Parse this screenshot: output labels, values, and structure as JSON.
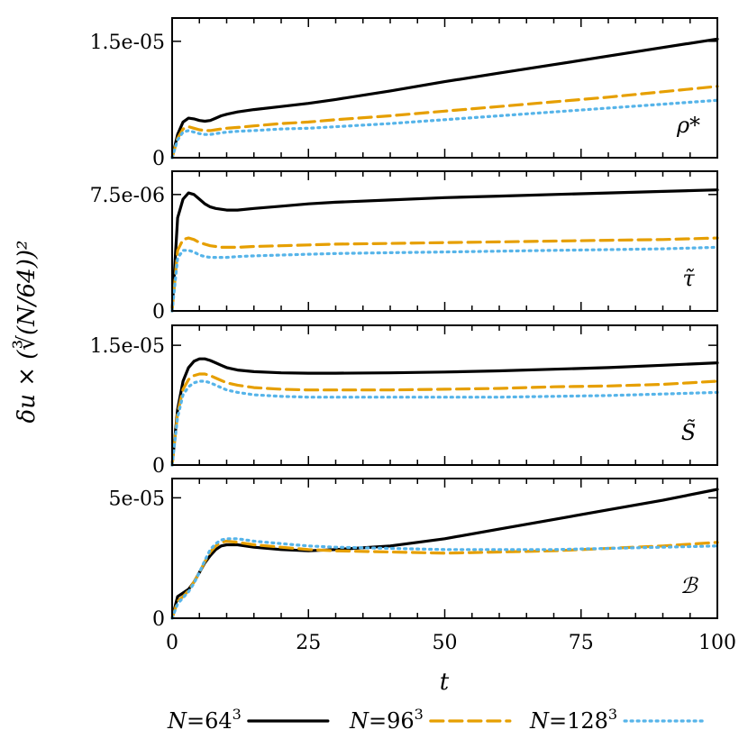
{
  "chart_data": {
    "type": "line",
    "xlabel": "t",
    "ylabel": "δu × (∛(N/64))²",
    "xlim": [
      0,
      100
    ],
    "xticks": [
      "0",
      "25",
      "50",
      "75",
      "100"
    ],
    "x": [
      0,
      1,
      2,
      3,
      4,
      5,
      6,
      7,
      8,
      9,
      10,
      12,
      15,
      20,
      25,
      30,
      40,
      50,
      60,
      70,
      80,
      90,
      100
    ],
    "legend": {
      "placement": "bottom",
      "entries": [
        {
          "prefix": "N",
          "eq": "=",
          "base": "64",
          "exp": "3",
          "color": "#000000",
          "dash": "solid"
        },
        {
          "prefix": "N",
          "eq": "=",
          "base": "96",
          "exp": "3",
          "color": "#e69f00",
          "dash": "dashed"
        },
        {
          "prefix": "N",
          "eq": "=",
          "base": "128",
          "exp": "3",
          "color": "#56b4e9",
          "dash": "dotted"
        }
      ]
    },
    "panels": [
      {
        "label": "ρ*",
        "ylim": [
          0,
          1.8e-05
        ],
        "yticks": [
          {
            "value": 0,
            "label": "0"
          },
          {
            "value": 1.5e-05,
            "label": "1.5e-05"
          }
        ],
        "series": [
          {
            "values": [
              0,
              3e-06,
              4.6e-06,
              5.1e-06,
              5e-06,
              4.8e-06,
              4.7e-06,
              4.8e-06,
              5.1e-06,
              5.4e-06,
              5.6e-06,
              5.9e-06,
              6.2e-06,
              6.6e-06,
              7e-06,
              7.5e-06,
              8.6e-06,
              9.8e-06,
              1.09e-05,
              1.2e-05,
              1.31e-05,
              1.42e-05,
              1.53e-05
            ]
          },
          {
            "values": [
              0,
              2.5e-06,
              3.7e-06,
              4e-06,
              3.8e-06,
              3.6e-06,
              3.5e-06,
              3.5e-06,
              3.6e-06,
              3.7e-06,
              3.8e-06,
              3.9e-06,
              4.1e-06,
              4.4e-06,
              4.6e-06,
              4.9e-06,
              5.4e-06,
              6e-06,
              6.6e-06,
              7.2e-06,
              7.8e-06,
              8.5e-06,
              9.2e-06
            ]
          },
          {
            "values": [
              0,
              2.3e-06,
              3.3e-06,
              3.5e-06,
              3.3e-06,
              3.1e-06,
              3e-06,
              3e-06,
              3.1e-06,
              3.2e-06,
              3.3e-06,
              3.4e-06,
              3.5e-06,
              3.7e-06,
              3.8e-06,
              4e-06,
              4.4e-06,
              4.9e-06,
              5.4e-06,
              5.9e-06,
              6.4e-06,
              6.9e-06,
              7.4e-06
            ]
          }
        ]
      },
      {
        "label": "τ̃",
        "ylim": [
          0,
          9e-06
        ],
        "yticks": [
          {
            "value": 0,
            "label": "0"
          },
          {
            "value": 7.5e-06,
            "label": "7.5e-06"
          }
        ],
        "series": [
          {
            "values": [
              0,
              6e-06,
              7.2e-06,
              7.6e-06,
              7.5e-06,
              7.2e-06,
              6.9e-06,
              6.7e-06,
              6.6e-06,
              6.55e-06,
              6.5e-06,
              6.5e-06,
              6.6e-06,
              6.75e-06,
              6.9e-06,
              7e-06,
              7.15e-06,
              7.3e-06,
              7.4e-06,
              7.5e-06,
              7.6e-06,
              7.7e-06,
              7.8e-06
            ]
          },
          {
            "values": [
              0,
              3.9e-06,
              4.6e-06,
              4.7e-06,
              4.6e-06,
              4.4e-06,
              4.3e-06,
              4.2e-06,
              4.15e-06,
              4.1e-06,
              4.1e-06,
              4.1e-06,
              4.15e-06,
              4.2e-06,
              4.25e-06,
              4.3e-06,
              4.35e-06,
              4.4e-06,
              4.45e-06,
              4.5e-06,
              4.55e-06,
              4.6e-06,
              4.7e-06
            ]
          },
          {
            "values": [
              0,
              3.4e-06,
              3.9e-06,
              3.9e-06,
              3.8e-06,
              3.6e-06,
              3.5e-06,
              3.45e-06,
              3.45e-06,
              3.45e-06,
              3.45e-06,
              3.5e-06,
              3.55e-06,
              3.6e-06,
              3.65e-06,
              3.7e-06,
              3.75e-06,
              3.8e-06,
              3.85e-06,
              3.9e-06,
              3.95e-06,
              4e-06,
              4.1e-06
            ]
          }
        ]
      },
      {
        "label": "S̃",
        "ylim": [
          0,
          1.75e-05
        ],
        "yticks": [
          {
            "value": 0,
            "label": "0"
          },
          {
            "value": 1.5e-05,
            "label": "1.5e-05"
          }
        ],
        "series": [
          {
            "values": [
              0,
              7e-06,
              1.05e-05,
              1.22e-05,
              1.3e-05,
              1.33e-05,
              1.33e-05,
              1.31e-05,
              1.28e-05,
              1.25e-05,
              1.22e-05,
              1.19e-05,
              1.17e-05,
              1.155e-05,
              1.15e-05,
              1.15e-05,
              1.155e-05,
              1.165e-05,
              1.18e-05,
              1.2e-05,
              1.22e-05,
              1.25e-05,
              1.28e-05
            ]
          },
          {
            "values": [
              0,
              6.5e-06,
              9.5e-06,
              1.07e-05,
              1.12e-05,
              1.14e-05,
              1.14e-05,
              1.12e-05,
              1.09e-05,
              1.06e-05,
              1.03e-05,
              1e-05,
              9.7e-06,
              9.5e-06,
              9.4e-06,
              9.4e-06,
              9.4e-06,
              9.5e-06,
              9.6e-06,
              9.8e-06,
              9.9e-06,
              1.01e-05,
              1.05e-05
            ]
          },
          {
            "values": [
              0,
              6e-06,
              8.8e-06,
              9.8e-06,
              1.03e-05,
              1.05e-05,
              1.05e-05,
              1.03e-05,
              1e-05,
              9.7e-06,
              9.4e-06,
              9.1e-06,
              8.8e-06,
              8.6e-06,
              8.5e-06,
              8.5e-06,
              8.5e-06,
              8.5e-06,
              8.5e-06,
              8.6e-06,
              8.7e-06,
              8.9e-06,
              9.1e-06
            ]
          }
        ]
      },
      {
        "label": "ℬ",
        "ylim": [
          0,
          5.8e-05
        ],
        "yticks": [
          {
            "value": 0,
            "label": "0"
          },
          {
            "value": 5e-05,
            "label": "5e-05"
          }
        ],
        "series": [
          {
            "values": [
              0,
              9e-06,
              1.05e-05,
              1.2e-05,
              1.5e-05,
              1.9e-05,
              2.3e-05,
              2.6e-05,
              2.85e-05,
              3e-05,
              3.05e-05,
              3.05e-05,
              2.95e-05,
              2.85e-05,
              2.8e-05,
              2.85e-05,
              3e-05,
              3.3e-05,
              3.7e-05,
              4.1e-05,
              4.5e-05,
              4.9e-05,
              5.35e-05
            ]
          },
          {
            "values": [
              0,
              7e-06,
              9e-06,
              1.15e-05,
              1.5e-05,
              1.9e-05,
              2.35e-05,
              2.75e-05,
              3e-05,
              3.15e-05,
              3.2e-05,
              3.15e-05,
              3.05e-05,
              2.95e-05,
              2.85e-05,
              2.8e-05,
              2.75e-05,
              2.7e-05,
              2.75e-05,
              2.8e-05,
              2.9e-05,
              3e-05,
              3.15e-05
            ]
          },
          {
            "values": [
              0,
              6e-06,
              8.5e-06,
              1.1e-05,
              1.45e-05,
              1.9e-05,
              2.4e-05,
              2.85e-05,
              3.1e-05,
              3.25e-05,
              3.3e-05,
              3.3e-05,
              3.2e-05,
              3.1e-05,
              3e-05,
              2.95e-05,
              2.9e-05,
              2.85e-05,
              2.85e-05,
              2.85e-05,
              2.9e-05,
              2.95e-05,
              3e-05
            ]
          }
        ]
      }
    ]
  }
}
